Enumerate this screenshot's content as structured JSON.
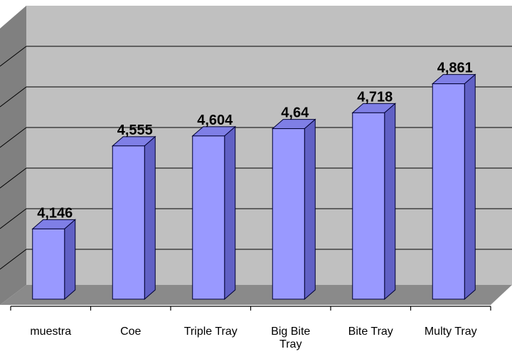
{
  "chart_data": {
    "type": "bar",
    "categories": [
      "muestra",
      "Coe",
      "Triple Tray",
      "Big Bite Tray",
      "Bite Tray",
      "Multy Tray"
    ],
    "category_lines": [
      [
        "muestra"
      ],
      [
        "Coe"
      ],
      [
        "Triple Tray"
      ],
      [
        "Big Bite",
        "Tray"
      ],
      [
        "Bite Tray"
      ],
      [
        "Multy Tray"
      ]
    ],
    "values": [
      4.146,
      4.555,
      4.604,
      4.64,
      4.718,
      4.861
    ],
    "value_labels": [
      "4,146",
      "4,555",
      "4,604",
      "4,64",
      "4,718",
      "4,861"
    ],
    "ylim": [
      3.8,
      5.0
    ],
    "grid": true,
    "style": "3d-column",
    "colors": {
      "bar_front": "#9999ff",
      "bar_side": "#6161c5",
      "bar_top": "#7f7fe6",
      "bar_stroke": "#000033",
      "wall": "#c0c0c0",
      "wall_side": "#808080",
      "floor": "#8a8a8a",
      "gridline": "#000000",
      "label": "#000000"
    }
  }
}
